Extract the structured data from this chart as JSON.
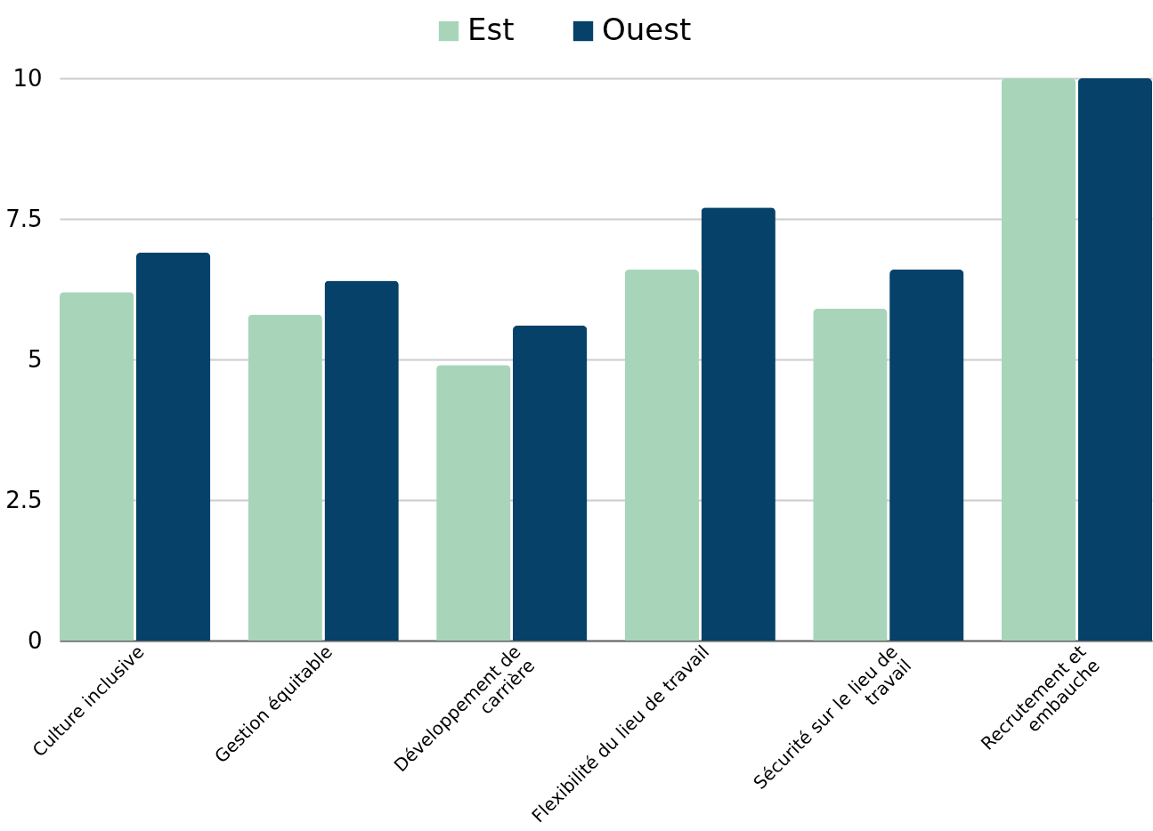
{
  "chart_data": {
    "type": "bar",
    "categories": [
      "Culture inclusive",
      "Gestion équitable",
      "Développement de\ncarrière",
      "Flexibilité du lieu de travail",
      "Sécurité sur le lieu de\ntravail",
      "Recrutement et\nembauche"
    ],
    "series": [
      {
        "name": "Est",
        "color": "#a8d5ba",
        "values": [
          6.2,
          5.8,
          4.9,
          6.6,
          5.9,
          10
        ]
      },
      {
        "name": "Ouest",
        "color": "#054168",
        "values": [
          6.9,
          6.4,
          5.6,
          7.7,
          6.6,
          10
        ]
      }
    ],
    "ylim": [
      0,
      10
    ],
    "yticks": [
      0,
      2.5,
      5,
      7.5,
      10
    ],
    "grid": "y",
    "legend": "top"
  }
}
